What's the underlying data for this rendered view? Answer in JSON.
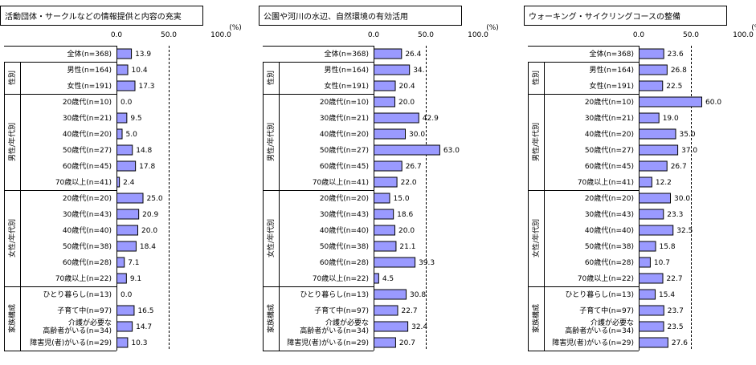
{
  "colors": {
    "bar_fill": "#9a9aff",
    "bar_stroke": "#000000",
    "line": "#000000"
  },
  "rows": [
    "全体(n=368)",
    "男性(n=164)",
    "女性(n=191)",
    "20歳代(n=10)",
    "30歳代(n=21)",
    "40歳代(n=20)",
    "50歳代(n=27)",
    "60歳代(n=45)",
    "70歳以上(n=41)",
    "20歳代(n=20)",
    "30歳代(n=43)",
    "40歳代(n=40)",
    "50歳代(n=38)",
    "60歳代(n=28)",
    "70歳以上(n=22)",
    "ひとり暮らし(n=13)",
    "子育て中(n=97)",
    "介護が必要な",
    "障害児(者)がいる(n=29)"
  ],
  "row_second_line": {
    "17": "高齢者がいる(n=34)"
  },
  "groups": [
    {
      "label": "性別",
      "start": 1,
      "end": 2
    },
    {
      "label": "男性/年代別",
      "start": 3,
      "end": 8
    },
    {
      "label": "女性/年代別",
      "start": 9,
      "end": 14
    },
    {
      "label": "家族構成",
      "start": 15,
      "end": 18
    }
  ],
  "axis": {
    "ticks": [
      "0.0",
      "50.0",
      "100.0"
    ],
    "unit": "(%)"
  },
  "chart_data": [
    {
      "type": "bar",
      "title": "活動団体・サークルなどの情報提供と内容の充実",
      "xlim": [
        0,
        100
      ],
      "ticks": [
        0,
        50,
        100
      ],
      "values": [
        13.9,
        10.4,
        17.3,
        0.0,
        9.5,
        5.0,
        14.8,
        17.8,
        2.4,
        25.0,
        20.9,
        20.0,
        18.4,
        7.1,
        9.1,
        0.0,
        16.5,
        14.7,
        10.3
      ],
      "labels": [
        "13.9",
        "10.4",
        "17.3",
        "0.0",
        "9.5",
        "5.0",
        "14.8",
        "17.8",
        "2.4",
        "25.0",
        "20.9",
        "20.0",
        "18.4",
        "7.1",
        "9.1",
        "0.0",
        "16.5",
        "14.7",
        "10.3"
      ]
    },
    {
      "type": "bar",
      "title": "公園や河川の水辺、自然環境の有効活用",
      "xlim": [
        0,
        100
      ],
      "ticks": [
        0,
        50,
        100
      ],
      "values": [
        26.4,
        34.0,
        20.4,
        20.0,
        42.9,
        30.0,
        63.0,
        26.7,
        22.0,
        15.0,
        18.6,
        20.0,
        21.1,
        39.3,
        4.5,
        30.8,
        22.7,
        32.4,
        20.7
      ],
      "labels": [
        "26.4",
        "34.",
        "20.4",
        "20.0",
        "42.9",
        "30.0",
        "63.0",
        "26.7",
        "22.0",
        "15.0",
        "18.6",
        "20.0",
        "21.1",
        "39.3",
        "4.5",
        "30.8",
        "22.7",
        "32.4",
        "20.7"
      ]
    },
    {
      "type": "bar",
      "title": "ウォーキング・サイクリングコースの整備",
      "xlim": [
        0,
        100
      ],
      "ticks": [
        0,
        50,
        100
      ],
      "values": [
        23.6,
        26.8,
        22.5,
        60.0,
        19.0,
        35.0,
        37.0,
        26.7,
        12.2,
        30.0,
        23.3,
        32.5,
        15.8,
        10.7,
        22.7,
        15.4,
        23.7,
        23.5,
        27.6
      ],
      "labels": [
        "23.6",
        "26.8",
        "22.5",
        "60.0",
        "19.0",
        "35.0",
        "37.0",
        "26.7",
        "12.2",
        "30.0",
        "23.3",
        "32.5",
        "15.8",
        "10.7",
        "22.7",
        "15.4",
        "23.7",
        "23.5",
        "27.6"
      ]
    }
  ]
}
